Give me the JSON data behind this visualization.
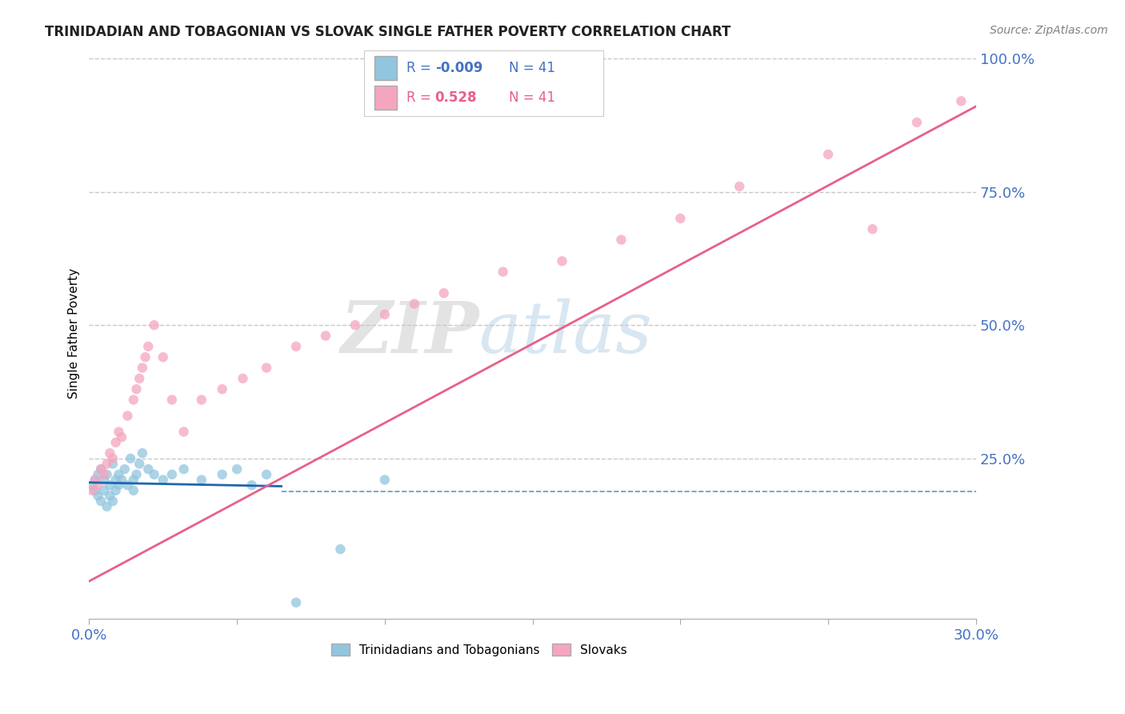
{
  "title": "TRINIDADIAN AND TOBAGONIAN VS SLOVAK SINGLE FATHER POVERTY CORRELATION CHART",
  "source": "Source: ZipAtlas.com",
  "ylabel": "Single Father Poverty",
  "x_min": 0.0,
  "x_max": 0.3,
  "y_min": -0.05,
  "y_max": 1.02,
  "x_ticks": [
    0.0,
    0.3
  ],
  "x_tick_labels": [
    "0.0%",
    "30.0%"
  ],
  "y_ticks": [
    0.25,
    0.5,
    0.75,
    1.0
  ],
  "y_tick_labels": [
    "25.0%",
    "50.0%",
    "75.0%",
    "100.0%"
  ],
  "legend_r1": "R = -0.009",
  "legend_n1": "N = 41",
  "legend_r2": "R =  0.528",
  "legend_n2": "N = 41",
  "color_blue": "#92c5de",
  "color_pink": "#f4a6be",
  "color_blue_line": "#2166ac",
  "color_pink_line": "#e8608a",
  "color_axis_label": "#4472c4",
  "color_grid": "#c8c8c8",
  "watermark_zip": "ZIP",
  "watermark_atlas": "atlas",
  "blue_points_x": [
    0.001,
    0.002,
    0.002,
    0.003,
    0.003,
    0.004,
    0.004,
    0.005,
    0.005,
    0.006,
    0.006,
    0.007,
    0.007,
    0.008,
    0.008,
    0.009,
    0.009,
    0.01,
    0.01,
    0.011,
    0.012,
    0.013,
    0.014,
    0.015,
    0.015,
    0.016,
    0.017,
    0.018,
    0.02,
    0.022,
    0.025,
    0.028,
    0.032,
    0.038,
    0.045,
    0.05,
    0.055,
    0.06,
    0.07,
    0.085,
    0.1
  ],
  "blue_points_y": [
    0.2,
    0.19,
    0.21,
    0.18,
    0.22,
    0.17,
    0.23,
    0.19,
    0.21,
    0.16,
    0.22,
    0.18,
    0.2,
    0.17,
    0.24,
    0.19,
    0.21,
    0.2,
    0.22,
    0.21,
    0.23,
    0.2,
    0.25,
    0.21,
    0.19,
    0.22,
    0.24,
    0.26,
    0.23,
    0.22,
    0.21,
    0.22,
    0.23,
    0.21,
    0.22,
    0.23,
    0.2,
    0.22,
    -0.02,
    0.08,
    0.21
  ],
  "pink_points_x": [
    0.001,
    0.002,
    0.003,
    0.004,
    0.005,
    0.006,
    0.007,
    0.008,
    0.009,
    0.01,
    0.011,
    0.013,
    0.015,
    0.016,
    0.017,
    0.018,
    0.019,
    0.02,
    0.022,
    0.025,
    0.028,
    0.032,
    0.038,
    0.045,
    0.052,
    0.06,
    0.07,
    0.08,
    0.09,
    0.1,
    0.11,
    0.12,
    0.14,
    0.16,
    0.18,
    0.2,
    0.22,
    0.25,
    0.265,
    0.28,
    0.295
  ],
  "pink_points_y": [
    0.19,
    0.21,
    0.2,
    0.23,
    0.22,
    0.24,
    0.26,
    0.25,
    0.28,
    0.3,
    0.29,
    0.33,
    0.36,
    0.38,
    0.4,
    0.42,
    0.44,
    0.46,
    0.5,
    0.44,
    0.36,
    0.3,
    0.36,
    0.38,
    0.4,
    0.42,
    0.46,
    0.48,
    0.5,
    0.52,
    0.54,
    0.56,
    0.6,
    0.62,
    0.66,
    0.7,
    0.76,
    0.82,
    0.68,
    0.88,
    0.92
  ],
  "blue_line_x": [
    0.0,
    0.065
  ],
  "blue_line_y": [
    0.205,
    0.198
  ],
  "pink_line_x": [
    0.0,
    0.3
  ],
  "pink_line_y": [
    0.02,
    0.91
  ],
  "dashed_line_y": 0.188,
  "dashed_line_x_start": 0.065,
  "dashed_line_x_end": 0.3
}
